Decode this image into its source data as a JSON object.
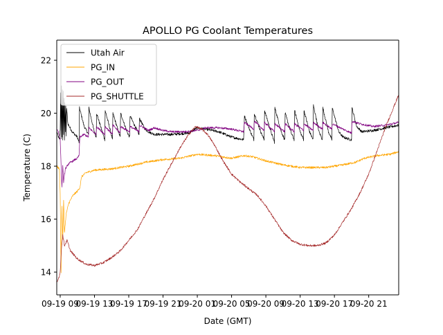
{
  "chart_data": {
    "type": "line",
    "title": "APOLLO PG Coolant Temperatures",
    "xlabel": "Date (GMT)",
    "ylabel": "Temperature (C)",
    "x_units": "hours since 09-19 09:00 GMT",
    "xlim": [
      -0.4,
      39.5
    ],
    "ylim": [
      13.14,
      22.76
    ],
    "grid": false,
    "legend_position": "top-left",
    "x_ticks": [
      0,
      4,
      8,
      12,
      16,
      20,
      24,
      28,
      32,
      36
    ],
    "x_tick_labels": [
      "09-19 09",
      "09-19 13",
      "09-19 17",
      "09-19 21",
      "09-20 01",
      "09-20 05",
      "09-20 09",
      "09-20 13",
      "09-20 17",
      "09-20 21"
    ],
    "y_ticks": [
      14,
      16,
      18,
      20,
      22
    ],
    "y_tick_labels": [
      "14",
      "16",
      "18",
      "20",
      "22"
    ],
    "series": [
      {
        "name": "Utah Air",
        "color": "#000000",
        "noise": 0.05,
        "points": [
          [
            -0.4,
            19.3
          ],
          [
            -0.1,
            19.0
          ],
          [
            0.0,
            19.4
          ],
          [
            0.05,
            20.8
          ],
          [
            0.1,
            19.0
          ],
          [
            0.15,
            21.0
          ],
          [
            0.2,
            19.1
          ],
          [
            0.25,
            20.9
          ],
          [
            0.3,
            19.0
          ],
          [
            0.35,
            20.8
          ],
          [
            0.4,
            19.2
          ],
          [
            0.45,
            20.6
          ],
          [
            0.5,
            19.0
          ],
          [
            0.55,
            20.4
          ],
          [
            0.6,
            19.3
          ],
          [
            0.65,
            20.3
          ],
          [
            0.7,
            19.1
          ],
          [
            0.75,
            20.2
          ],
          [
            0.9,
            19.6
          ],
          [
            1.4,
            19.3
          ],
          [
            2.0,
            19.1
          ],
          [
            2.2,
            18.9
          ],
          [
            2.25,
            20.2
          ],
          [
            2.8,
            19.5
          ],
          [
            3.3,
            19.2
          ],
          [
            3.35,
            20.2
          ],
          [
            3.9,
            19.4
          ],
          [
            4.2,
            19.1
          ],
          [
            4.25,
            20.0
          ],
          [
            4.9,
            19.3
          ],
          [
            5.2,
            19.0
          ],
          [
            5.25,
            20.1
          ],
          [
            5.9,
            19.3
          ],
          [
            6.1,
            19.0
          ],
          [
            6.15,
            20.0
          ],
          [
            6.8,
            19.3
          ],
          [
            7.0,
            19.1
          ],
          [
            7.05,
            20.0
          ],
          [
            7.8,
            19.3
          ],
          [
            8.1,
            19.1
          ],
          [
            8.15,
            19.9
          ],
          [
            8.9,
            19.4
          ],
          [
            9.2,
            19.2
          ],
          [
            9.25,
            19.8
          ],
          [
            9.9,
            19.4
          ],
          [
            10.3,
            19.3
          ],
          [
            11.0,
            19.2
          ],
          [
            13.0,
            19.2
          ],
          [
            15.0,
            19.25
          ],
          [
            16.0,
            19.45
          ],
          [
            17.0,
            19.4
          ],
          [
            18.5,
            19.3
          ],
          [
            20.0,
            19.1
          ],
          [
            21.4,
            19.0
          ],
          [
            21.5,
            19.9
          ],
          [
            22.2,
            19.3
          ],
          [
            22.6,
            19.0
          ],
          [
            22.65,
            20.0
          ],
          [
            23.4,
            19.3
          ],
          [
            23.8,
            19.0
          ],
          [
            23.85,
            20.1
          ],
          [
            24.6,
            19.3
          ],
          [
            25.0,
            18.9
          ],
          [
            25.05,
            20.2
          ],
          [
            25.8,
            19.3
          ],
          [
            26.2,
            19.0
          ],
          [
            26.25,
            20.0
          ],
          [
            26.9,
            19.3
          ],
          [
            27.3,
            19.0
          ],
          [
            27.35,
            20.1
          ],
          [
            28.0,
            19.3
          ],
          [
            28.4,
            19.0
          ],
          [
            28.45,
            20.1
          ],
          [
            29.1,
            19.3
          ],
          [
            29.5,
            19.0
          ],
          [
            29.55,
            20.3
          ],
          [
            30.2,
            19.3
          ],
          [
            30.6,
            19.0
          ],
          [
            30.65,
            20.2
          ],
          [
            31.3,
            19.3
          ],
          [
            31.7,
            19.0
          ],
          [
            31.75,
            20.2
          ],
          [
            32.5,
            19.3
          ],
          [
            33.0,
            19.1
          ],
          [
            33.9,
            19.0
          ],
          [
            34.0,
            19.0
          ],
          [
            34.05,
            20.2
          ],
          [
            34.6,
            19.5
          ],
          [
            35.2,
            19.3
          ],
          [
            36.5,
            19.35
          ],
          [
            38.0,
            19.45
          ],
          [
            39.5,
            19.55
          ]
        ]
      },
      {
        "name": "PG_IN",
        "color": "#ffa500",
        "noise": 0.04,
        "points": [
          [
            -0.4,
            18.0
          ],
          [
            -0.1,
            17.9
          ],
          [
            0.0,
            17.0
          ],
          [
            0.1,
            14.0
          ],
          [
            0.2,
            16.5
          ],
          [
            0.3,
            15.2
          ],
          [
            0.4,
            16.7
          ],
          [
            0.5,
            15.5
          ],
          [
            0.7,
            16.2
          ],
          [
            1.0,
            16.6
          ],
          [
            1.5,
            16.9
          ],
          [
            2.0,
            17.05
          ],
          [
            2.3,
            17.2
          ],
          [
            2.5,
            17.6
          ],
          [
            3.0,
            17.75
          ],
          [
            4.0,
            17.85
          ],
          [
            6.0,
            17.9
          ],
          [
            8.0,
            18.0
          ],
          [
            10.0,
            18.15
          ],
          [
            12.0,
            18.25
          ],
          [
            14.0,
            18.3
          ],
          [
            16.0,
            18.45
          ],
          [
            18.0,
            18.4
          ],
          [
            20.0,
            18.3
          ],
          [
            21.5,
            18.4
          ],
          [
            22.5,
            18.35
          ],
          [
            24.0,
            18.2
          ],
          [
            26.0,
            18.05
          ],
          [
            28.0,
            17.95
          ],
          [
            29.5,
            17.95
          ],
          [
            31.0,
            17.95
          ],
          [
            33.0,
            18.05
          ],
          [
            34.5,
            18.15
          ],
          [
            35.5,
            18.3
          ],
          [
            37.0,
            18.4
          ],
          [
            38.5,
            18.45
          ],
          [
            39.5,
            18.55
          ]
        ]
      },
      {
        "name": "PG_OUT",
        "color": "#800080",
        "noise": 0.04,
        "points": [
          [
            -0.4,
            19.4
          ],
          [
            -0.2,
            19.3
          ],
          [
            0.0,
            19.0
          ],
          [
            0.1,
            18.1
          ],
          [
            0.2,
            17.2
          ],
          [
            0.3,
            18.0
          ],
          [
            0.4,
            17.4
          ],
          [
            0.6,
            17.9
          ],
          [
            1.0,
            18.1
          ],
          [
            1.5,
            18.2
          ],
          [
            2.0,
            18.3
          ],
          [
            2.2,
            18.4
          ],
          [
            2.3,
            19.1
          ],
          [
            2.8,
            19.2
          ],
          [
            3.3,
            19.1
          ],
          [
            3.35,
            19.45
          ],
          [
            4.2,
            19.2
          ],
          [
            4.25,
            19.5
          ],
          [
            5.2,
            19.2
          ],
          [
            5.25,
            19.5
          ],
          [
            6.1,
            19.2
          ],
          [
            6.15,
            19.55
          ],
          [
            7.0,
            19.25
          ],
          [
            7.05,
            19.5
          ],
          [
            8.1,
            19.3
          ],
          [
            8.15,
            19.5
          ],
          [
            9.2,
            19.3
          ],
          [
            9.25,
            19.55
          ],
          [
            10.3,
            19.35
          ],
          [
            11.0,
            19.45
          ],
          [
            12.0,
            19.35
          ],
          [
            13.0,
            19.3
          ],
          [
            14.5,
            19.3
          ],
          [
            16.0,
            19.35
          ],
          [
            17.0,
            19.45
          ],
          [
            18.5,
            19.45
          ],
          [
            20.0,
            19.4
          ],
          [
            21.4,
            19.3
          ],
          [
            21.5,
            19.65
          ],
          [
            22.6,
            19.4
          ],
          [
            22.65,
            19.7
          ],
          [
            23.8,
            19.35
          ],
          [
            23.85,
            19.65
          ],
          [
            25.0,
            19.3
          ],
          [
            25.05,
            19.6
          ],
          [
            26.2,
            19.3
          ],
          [
            26.25,
            19.6
          ],
          [
            27.3,
            19.3
          ],
          [
            27.35,
            19.6
          ],
          [
            28.4,
            19.35
          ],
          [
            28.45,
            19.6
          ],
          [
            29.5,
            19.35
          ],
          [
            29.55,
            19.65
          ],
          [
            30.6,
            19.4
          ],
          [
            30.65,
            19.65
          ],
          [
            31.7,
            19.4
          ],
          [
            31.75,
            19.6
          ],
          [
            33.0,
            19.4
          ],
          [
            34.0,
            19.25
          ],
          [
            34.05,
            19.7
          ],
          [
            35.0,
            19.6
          ],
          [
            36.5,
            19.5
          ],
          [
            38.0,
            19.55
          ],
          [
            39.5,
            19.65
          ]
        ]
      },
      {
        "name": "PG_SHUTTLE",
        "color": "#a52a2a",
        "noise": 0.04,
        "points": [
          [
            -0.4,
            13.6
          ],
          [
            -0.1,
            13.85
          ],
          [
            0.0,
            14.0
          ],
          [
            0.15,
            14.9
          ],
          [
            0.3,
            15.4
          ],
          [
            0.5,
            15.0
          ],
          [
            0.8,
            15.2
          ],
          [
            1.2,
            14.8
          ],
          [
            2.0,
            14.5
          ],
          [
            3.0,
            14.3
          ],
          [
            4.0,
            14.25
          ],
          [
            5.0,
            14.35
          ],
          [
            6.0,
            14.55
          ],
          [
            7.0,
            14.8
          ],
          [
            8.0,
            15.2
          ],
          [
            9.0,
            15.6
          ],
          [
            10.0,
            16.2
          ],
          [
            11.0,
            16.8
          ],
          [
            12.0,
            17.5
          ],
          [
            13.0,
            18.1
          ],
          [
            14.0,
            18.7
          ],
          [
            15.0,
            19.2
          ],
          [
            15.8,
            19.5
          ],
          [
            16.5,
            19.4
          ],
          [
            17.2,
            19.2
          ],
          [
            18.0,
            18.8
          ],
          [
            19.0,
            18.2
          ],
          [
            20.0,
            17.7
          ],
          [
            21.0,
            17.4
          ],
          [
            22.0,
            17.15
          ],
          [
            23.0,
            16.9
          ],
          [
            24.0,
            16.5
          ],
          [
            25.0,
            16.0
          ],
          [
            26.0,
            15.5
          ],
          [
            27.0,
            15.2
          ],
          [
            28.0,
            15.05
          ],
          [
            29.0,
            15.0
          ],
          [
            30.0,
            15.0
          ],
          [
            31.0,
            15.1
          ],
          [
            32.0,
            15.4
          ],
          [
            33.0,
            15.9
          ],
          [
            34.0,
            16.4
          ],
          [
            35.0,
            17.0
          ],
          [
            36.0,
            17.7
          ],
          [
            37.0,
            18.6
          ],
          [
            38.0,
            19.5
          ],
          [
            39.0,
            20.3
          ],
          [
            39.5,
            20.7
          ]
        ]
      }
    ]
  }
}
